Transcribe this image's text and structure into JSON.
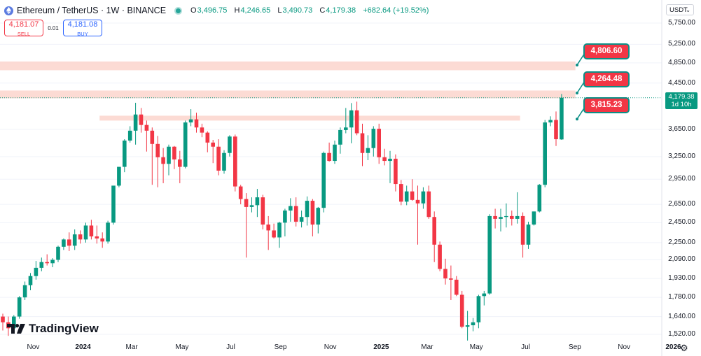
{
  "header": {
    "symbol": "Ethereum / TetherUS · 1W · BINANCE",
    "ohlc": [
      {
        "key": "O",
        "value": "3,496.75"
      },
      {
        "key": "H",
        "value": "4,246.65"
      },
      {
        "key": "L",
        "value": "3,490.73"
      },
      {
        "key": "C",
        "value": "4,179.38"
      }
    ],
    "change": "+682.64 (+19.52%)"
  },
  "trade": {
    "sell_price": "4,181.07",
    "sell_label": "SELL",
    "spread": "0.01",
    "buy_price": "4,181.08",
    "buy_label": "BUY"
  },
  "currency_selector": "USDT",
  "current_price": {
    "value": "4,179.38",
    "countdown": "1d 10h"
  },
  "brand": "TradingView",
  "colors": {
    "up": "#089981",
    "down": "#f23645",
    "zone": "#fcd5cc",
    "badge": "#f23645"
  },
  "chart_data": {
    "type": "candlestick",
    "title": "Ethereum / TetherUS · 1W · BINANCE",
    "y_scale": "log",
    "ylim": [
      1480,
      6000
    ],
    "y_ticks": [
      {
        "value": 5750,
        "label": "5,750.00"
      },
      {
        "value": 5250,
        "label": "5,250.00"
      },
      {
        "value": 4850,
        "label": "4,850.00"
      },
      {
        "value": 4450,
        "label": "4,450.00"
      },
      {
        "value": 3650,
        "label": "3,650.00"
      },
      {
        "value": 3250,
        "label": "3,250.00"
      },
      {
        "value": 2950,
        "label": "2,950.00"
      },
      {
        "value": 2650,
        "label": "2,650.00"
      },
      {
        "value": 2450,
        "label": "2,450.00"
      },
      {
        "value": 2250,
        "label": "2,250.00"
      },
      {
        "value": 2090,
        "label": "2,090.00"
      },
      {
        "value": 1930,
        "label": "1,930.00"
      },
      {
        "value": 1780,
        "label": "1,780.00"
      },
      {
        "value": 1640,
        "label": "1,640.00"
      },
      {
        "value": 1520,
        "label": "1,520.00"
      }
    ],
    "x_ticks": [
      {
        "label": "Nov",
        "week": 5.5,
        "bold": false
      },
      {
        "label": "2024",
        "week": 14.5,
        "bold": true
      },
      {
        "label": "Mar",
        "week": 23.3,
        "bold": false
      },
      {
        "label": "May",
        "week": 32.4,
        "bold": false
      },
      {
        "label": "Jul",
        "week": 41.2,
        "bold": false
      },
      {
        "label": "Sep",
        "week": 50.2,
        "bold": false
      },
      {
        "label": "Nov",
        "week": 59.2,
        "bold": false
      },
      {
        "label": "2025",
        "week": 68.4,
        "bold": true
      },
      {
        "label": "Mar",
        "week": 76.7,
        "bold": false
      },
      {
        "label": "May",
        "week": 85.6,
        "bold": false
      },
      {
        "label": "Jul",
        "week": 94.5,
        "bold": false
      },
      {
        "label": "Sep",
        "week": 103.4,
        "bold": false
      },
      {
        "label": "Nov",
        "week": 112.3,
        "bold": false
      },
      {
        "label": "2026",
        "week": 121.2,
        "bold": true
      }
    ],
    "candles": [
      [
        1640,
        1660,
        1545,
        1600
      ],
      [
        1600,
        1640,
        1510,
        1560
      ],
      [
        1560,
        1650,
        1545,
        1640
      ],
      [
        1640,
        1790,
        1625,
        1780
      ],
      [
        1780,
        1905,
        1760,
        1875
      ],
      [
        1875,
        1975,
        1835,
        1950
      ],
      [
        1950,
        2080,
        1920,
        2020
      ],
      [
        2020,
        2110,
        1990,
        2070
      ],
      [
        2070,
        2140,
        2040,
        2060
      ],
      [
        2060,
        2105,
        2025,
        2090
      ],
      [
        2090,
        2220,
        2070,
        2210
      ],
      [
        2210,
        2290,
        2180,
        2280
      ],
      [
        2280,
        2350,
        2170,
        2220
      ],
      [
        2220,
        2380,
        2180,
        2330
      ],
      [
        2330,
        2370,
        2240,
        2280
      ],
      [
        2280,
        2450,
        2250,
        2420
      ],
      [
        2420,
        2480,
        2280,
        2310
      ],
      [
        2310,
        2420,
        2240,
        2290
      ],
      [
        2290,
        2350,
        2200,
        2260
      ],
      [
        2260,
        2470,
        2240,
        2450
      ],
      [
        2450,
        2860,
        2430,
        2870
      ],
      [
        2870,
        3110,
        2850,
        3110
      ],
      [
        3110,
        3500,
        3040,
        3480
      ],
      [
        3480,
        3700,
        3450,
        3630
      ],
      [
        3630,
        4090,
        3420,
        3890
      ],
      [
        3890,
        4000,
        3600,
        3720
      ],
      [
        3720,
        3790,
        3320,
        3630
      ],
      [
        3630,
        3680,
        2880,
        3430
      ],
      [
        3430,
        3550,
        2850,
        3240
      ],
      [
        3240,
        3370,
        2900,
        3150
      ],
      [
        3150,
        3420,
        3000,
        3390
      ],
      [
        3390,
        3400,
        3080,
        3210
      ],
      [
        3210,
        3330,
        2900,
        3110
      ],
      [
        3110,
        3790,
        3090,
        3760
      ],
      [
        3760,
        3980,
        3700,
        3810
      ],
      [
        3810,
        3920,
        3600,
        3680
      ],
      [
        3680,
        3740,
        3530,
        3600
      ],
      [
        3600,
        3620,
        3310,
        3450
      ],
      [
        3450,
        3490,
        3160,
        3390
      ],
      [
        3390,
        3500,
        3000,
        3060
      ],
      [
        3060,
        3340,
        3020,
        3300
      ],
      [
        3300,
        3560,
        3250,
        3540
      ],
      [
        3540,
        3570,
        2800,
        2860
      ],
      [
        2860,
        2880,
        2650,
        2710
      ],
      [
        2710,
        2780,
        2110,
        2620
      ],
      [
        2620,
        2730,
        2560,
        2640
      ],
      [
        2640,
        2830,
        2510,
        2730
      ],
      [
        2730,
        2760,
        2380,
        2430
      ],
      [
        2430,
        2520,
        2180,
        2370
      ],
      [
        2370,
        2440,
        2290,
        2300
      ],
      [
        2300,
        2460,
        2200,
        2450
      ],
      [
        2450,
        2600,
        2310,
        2580
      ],
      [
        2580,
        2720,
        2460,
        2630
      ],
      [
        2630,
        2730,
        2410,
        2460
      ],
      [
        2460,
        2580,
        2400,
        2510
      ],
      [
        2510,
        2740,
        2420,
        2690
      ],
      [
        2690,
        2710,
        2310,
        2430
      ],
      [
        2430,
        2620,
        2340,
        2610
      ],
      [
        2610,
        3320,
        2560,
        3300
      ],
      [
        3300,
        3450,
        3180,
        3190
      ],
      [
        3190,
        3480,
        3150,
        3420
      ],
      [
        3420,
        3680,
        3290,
        3640
      ],
      [
        3640,
        4000,
        3590,
        3680
      ],
      [
        3680,
        4085,
        3440,
        3960
      ],
      [
        3960,
        4110,
        3560,
        3590
      ],
      [
        3590,
        3740,
        3120,
        3300
      ],
      [
        3300,
        3560,
        3200,
        3370
      ],
      [
        3370,
        3700,
        3250,
        3660
      ],
      [
        3660,
        3740,
        3150,
        3240
      ],
      [
        3240,
        3360,
        3130,
        3190
      ],
      [
        3190,
        3330,
        2900,
        3220
      ],
      [
        3220,
        3280,
        2800,
        2890
      ],
      [
        2890,
        2940,
        2640,
        2680
      ],
      [
        2680,
        2870,
        2640,
        2800
      ],
      [
        2800,
        2950,
        2690,
        2700
      ],
      [
        2700,
        2870,
        2230,
        2660
      ],
      [
        2660,
        2850,
        2600,
        2800
      ],
      [
        2800,
        2870,
        2490,
        2510
      ],
      [
        2510,
        2570,
        2070,
        2230
      ],
      [
        2230,
        2260,
        1990,
        2010
      ],
      [
        2010,
        2100,
        1880,
        1930
      ],
      [
        1930,
        2040,
        1760,
        1920
      ],
      [
        1920,
        1950,
        1790,
        1800
      ],
      [
        1800,
        1830,
        1560,
        1570
      ],
      [
        1570,
        1680,
        1480,
        1580
      ],
      [
        1580,
        1630,
        1540,
        1600
      ],
      [
        1600,
        1800,
        1560,
        1790
      ],
      [
        1790,
        1830,
        1720,
        1810
      ],
      [
        1810,
        2540,
        1800,
        2520
      ],
      [
        2520,
        2600,
        2390,
        2490
      ],
      [
        2490,
        2600,
        2360,
        2510
      ],
      [
        2510,
        2660,
        2400,
        2520
      ],
      [
        2520,
        2580,
        2420,
        2490
      ],
      [
        2490,
        2790,
        2440,
        2520
      ],
      [
        2520,
        2560,
        2110,
        2230
      ],
      [
        2230,
        2460,
        2190,
        2430
      ],
      [
        2430,
        2570,
        2420,
        2570
      ],
      [
        2570,
        2890,
        2560,
        2880
      ],
      [
        2880,
        3800,
        2850,
        3760
      ],
      [
        3760,
        3860,
        3700,
        3800
      ],
      [
        3800,
        3940,
        3400,
        3500
      ],
      [
        3496.75,
        4246.65,
        3490.73,
        4179.38
      ]
    ],
    "levels": [
      {
        "label": "4,806.60",
        "value": 4806.6,
        "zone": [
          4700,
          4880
        ]
      },
      {
        "label": "4,264.48",
        "value": 4264.48,
        "zone": [
          4170,
          4310
        ]
      },
      {
        "label": "3,815.23",
        "value": 3815.23,
        "zone": [
          3790,
          3870
        ]
      }
    ]
  }
}
